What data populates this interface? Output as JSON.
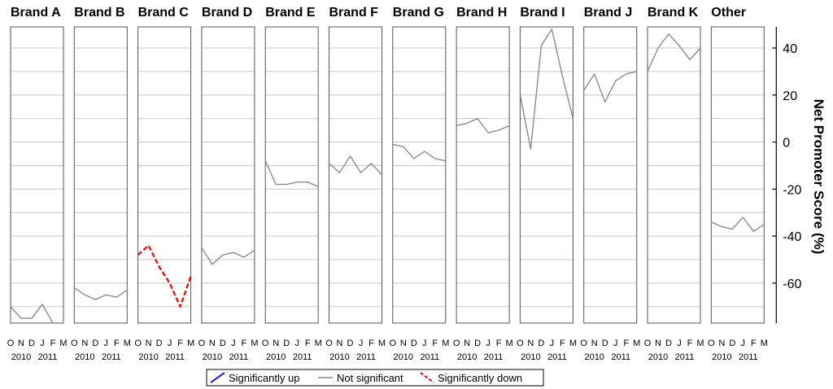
{
  "chart_data": {
    "type": "line",
    "ylabel": "Net Promoter Score (%)",
    "ylim": [
      -77,
      49
    ],
    "yticks": [
      40,
      20,
      0,
      -20,
      -40,
      -60
    ],
    "ygrid_step": 10,
    "grid": true,
    "month_labels": [
      "O",
      "N",
      "D",
      "J",
      "F",
      "M"
    ],
    "year_labels": [
      "2010",
      "2011"
    ],
    "x": [
      "Oct 2010",
      "Nov 2010",
      "Dec 2010",
      "Jan 2011",
      "Feb 2011",
      "Mar 2011"
    ],
    "legend": {
      "placement": "bottom",
      "entries": [
        {
          "label": "Significantly up",
          "color": "#1f1fd6",
          "style": "solid"
        },
        {
          "label": "Not significant",
          "color": "#8c8c8c",
          "style": "solid"
        },
        {
          "label": "Significantly down",
          "color": "#ee1111",
          "style": "dashed"
        }
      ]
    },
    "series": [
      {
        "name": "Brand A",
        "status": "Not significant",
        "values": [
          -70,
          -75,
          -75,
          -69,
          -77,
          -77
        ]
      },
      {
        "name": "Brand B",
        "status": "Not significant",
        "values": [
          -62,
          -65,
          -67,
          -65,
          -66,
          -63
        ]
      },
      {
        "name": "Brand C",
        "status": "Significantly down",
        "values": [
          -48,
          -44,
          -53,
          -60,
          -70,
          -57
        ]
      },
      {
        "name": "Brand D",
        "status": "Not significant",
        "values": [
          -45,
          -52,
          -48,
          -47,
          -49,
          -46
        ]
      },
      {
        "name": "Brand E",
        "status": "Not significant",
        "values": [
          -8,
          -18,
          -18,
          -17,
          -17,
          -19
        ]
      },
      {
        "name": "Brand F",
        "status": "Not significant",
        "values": [
          -9,
          -13,
          -6,
          -13,
          -9,
          -14
        ]
      },
      {
        "name": "Brand G",
        "status": "Not significant",
        "values": [
          -1,
          -2,
          -7,
          -4,
          -7,
          -8
        ]
      },
      {
        "name": "Brand H",
        "status": "Not significant",
        "values": [
          7,
          8,
          10,
          4,
          5,
          7
        ]
      },
      {
        "name": "Brand I",
        "status": "Not significant",
        "values": [
          20,
          -3,
          41,
          48,
          28,
          10
        ]
      },
      {
        "name": "Brand J",
        "status": "Not significant",
        "values": [
          22,
          29,
          17,
          26,
          29,
          30
        ]
      },
      {
        "name": "Brand K",
        "status": "Not significant",
        "values": [
          30,
          40,
          46,
          41,
          35,
          40
        ]
      },
      {
        "name": "Other",
        "status": "Not significant",
        "values": [
          -34,
          -36,
          -37,
          -32,
          -38,
          -35
        ]
      }
    ]
  }
}
